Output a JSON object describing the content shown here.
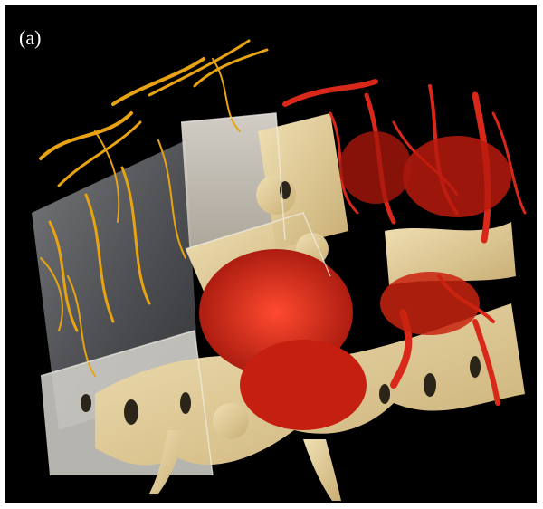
{
  "figure": {
    "panel_label": "(a)",
    "colors": {
      "background": "#000000",
      "vessels_left": "#e8a312",
      "vessels_right": "#d8281a",
      "bone": "#e3cf9e",
      "glass_block": "#c8ccd2"
    },
    "description_icon": "3d-render-image"
  }
}
